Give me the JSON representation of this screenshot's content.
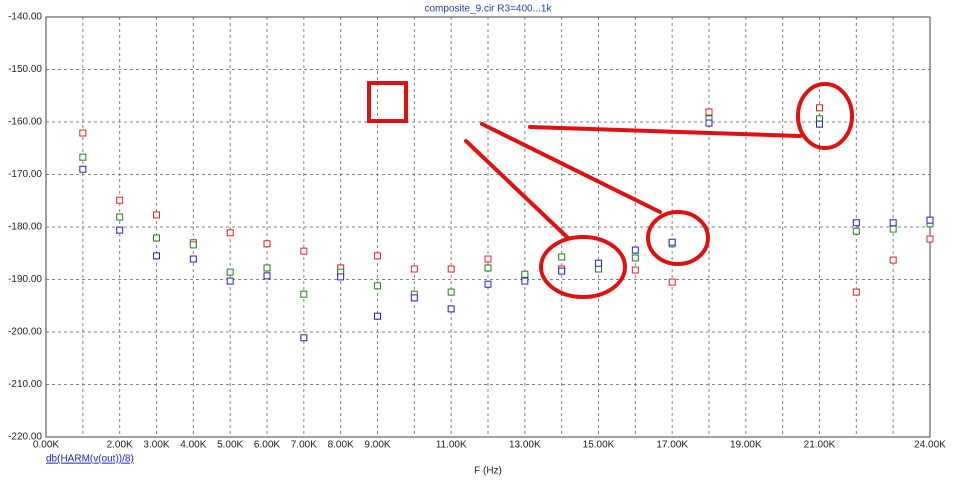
{
  "chart_data": {
    "type": "scatter",
    "title": "composite_9.cir R3=400...1k",
    "x_label": "F (Hz)",
    "trace_label": "db(HARM(v(out))/8)",
    "x": [
      1000,
      2000,
      3000,
      4000,
      5000,
      6000,
      7000,
      8000,
      9000,
      10000,
      11000,
      12000,
      13000,
      14000,
      15000,
      16000,
      17000,
      18000,
      21000,
      22000,
      23000,
      24000
    ],
    "series": [
      {
        "color": "#e02020",
        "values": [
          -162.1,
          -174.9,
          -177.7,
          -183.0,
          -181.1,
          -183.2,
          -184.6,
          -187.8,
          -185.5,
          -188.0,
          -188.0,
          -186.1,
          -189.5,
          -188.0,
          -187.4,
          -188.2,
          -190.5,
          -158.1,
          -157.3,
          -192.4,
          -186.3,
          -182.3
        ]
      },
      {
        "color": "#208020",
        "values": [
          -166.7,
          -178.1,
          -182.1,
          -183.4,
          -188.6,
          -187.8,
          -192.8,
          -188.6,
          -191.2,
          -192.8,
          -192.4,
          -187.8,
          -189.0,
          -185.7,
          -188.0,
          -185.9,
          -183.2,
          -159.4,
          -159.4,
          -180.8,
          -180.4,
          -179.4
        ]
      },
      {
        "color": "#2020c0",
        "values": [
          -169.0,
          -180.6,
          -185.5,
          -186.1,
          -190.3,
          -189.3,
          -201.1,
          -189.5,
          -197.0,
          -193.5,
          -195.6,
          -190.9,
          -190.3,
          -188.4,
          -186.9,
          -184.4,
          -182.9,
          -160.2,
          -160.4,
          -179.2,
          -179.2,
          -178.7
        ]
      }
    ],
    "xlim": [
      0,
      24000
    ],
    "ylim": [
      -220,
      -140
    ],
    "xticks": [
      {
        "value": 0,
        "label": "0.00K"
      },
      {
        "value": 1000,
        "label": null
      },
      {
        "value": 2000,
        "label": "2.00K"
      },
      {
        "value": 3000,
        "label": "3.00K"
      },
      {
        "value": 4000,
        "label": "4.00K"
      },
      {
        "value": 5000,
        "label": "5.00K"
      },
      {
        "value": 6000,
        "label": "6.00K"
      },
      {
        "value": 7000,
        "label": "7.00K"
      },
      {
        "value": 8000,
        "label": "8.00K"
      },
      {
        "value": 9000,
        "label": "9.00K"
      },
      {
        "value": 10000,
        "label": null
      },
      {
        "value": 11000,
        "label": "11.00K"
      },
      {
        "value": 12000,
        "label": null
      },
      {
        "value": 13000,
        "label": "13.00K"
      },
      {
        "value": 14000,
        "label": null
      },
      {
        "value": 15000,
        "label": "15.00K"
      },
      {
        "value": 16000,
        "label": null
      },
      {
        "value": 17000,
        "label": "17.00K"
      },
      {
        "value": 18000,
        "label": null
      },
      {
        "value": 19000,
        "label": "19.00K"
      },
      {
        "value": 20000,
        "label": null
      },
      {
        "value": 21000,
        "label": "21.00K"
      },
      {
        "value": 22000,
        "label": null
      },
      {
        "value": 23000,
        "label": null
      },
      {
        "value": 24000,
        "label": "24.00K"
      }
    ],
    "yticks": [
      {
        "value": -140,
        "label": "-140.00"
      },
      {
        "value": -150,
        "label": "-150.00"
      },
      {
        "value": -160,
        "label": "-160.00"
      },
      {
        "value": -170,
        "label": "-170.00"
      },
      {
        "value": -180,
        "label": "-180.00"
      },
      {
        "value": -190,
        "label": "-190.00"
      },
      {
        "value": -200,
        "label": "-200.00"
      },
      {
        "value": -210,
        "label": "-210.00"
      },
      {
        "value": -220,
        "label": "-220.00"
      }
    ],
    "grid": true
  }
}
